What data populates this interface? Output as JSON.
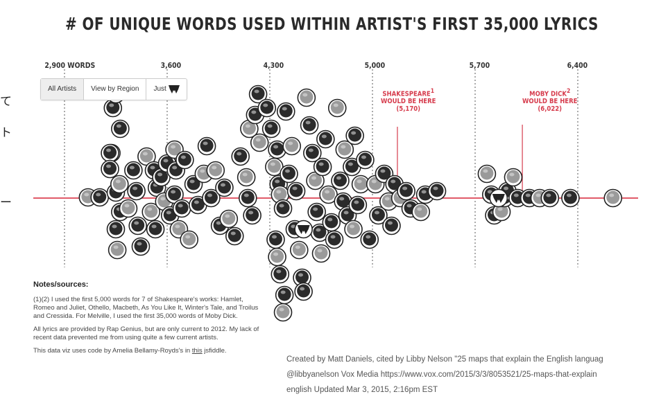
{
  "title": "# OF UNIQUE WORDS USED WITHIN ARTIST'S FIRST 35,000 LYRICS",
  "axis_ticks": [
    "2,900 WORDS",
    "3,600",
    "4,300",
    "5,000",
    "5,700",
    "6,400"
  ],
  "filters": {
    "all": "All Artists",
    "region": "View by Region",
    "just": "Just"
  },
  "annotations": {
    "shakespeare": {
      "l1": "SHAKESPEARE",
      "sup": "1",
      "l2": "WOULD BE HERE",
      "l3": "(5,170)"
    },
    "mobydick": {
      "l1": "MOBY DICK",
      "sup": "2",
      "l2": "WOULD BE HERE",
      "l3": "(6,022)"
    }
  },
  "notes": {
    "title": "Notes/sources:",
    "p1": "(1)(2) I used the first 5,000 words for 7 of Shakespeare's works: Hamlet, Romeo and Juliet, Othello, Macbeth, As You Like It, Winter's Tale, and Troilus and Cressida. For Melville, I used the first 35,000 words of Moby Dick.",
    "p2": "All lyrics are provided by Rap Genius, but are only current to 2012. My lack of recent data prevented me from using quite a few current artists.",
    "p3_pre": "This data viz uses code by Amelia Bellamy-Royds's in ",
    "p3_link": "this",
    "p3_post": " jsfiddle."
  },
  "credit": {
    "l1": "Created by Matt Daniels, cited by Libby Nelson \"25 maps that explain the English languag",
    "l2": "@libbyanelson Vox Media https://www.vox.com/2015/3/3/8053521/25-maps-that-explain",
    "l3": "english Updated Mar 3, 2015, 2:16pm EST"
  },
  "left_glyphs": [
    "て",
    "ト",
    "ー"
  ],
  "colors": {
    "accent": "#d63b4c",
    "axis": "#e05a68",
    "face_dark": "#2b2b2b",
    "face_light": "#9a9a9a"
  },
  "chart_data": {
    "type": "scatter",
    "title": "# OF UNIQUE WORDS USED WITHIN ARTIST'S FIRST 35,000 LYRICS",
    "x_axis": {
      "ticks": [
        2900,
        3600,
        4300,
        5000,
        5700,
        6400
      ],
      "range": [
        2900,
        6750
      ]
    },
    "reference_lines": [
      {
        "label": "SHAKESPEARE",
        "value": 5170
      },
      {
        "label": "MOBY DICK",
        "value": 6022
      }
    ],
    "markers": [
      [
        3060,
        -1
      ],
      [
        3140,
        -1
      ],
      [
        3250,
        -8
      ],
      [
        3220,
        -65
      ],
      [
        3280,
        -100
      ],
      [
        3230,
        -130
      ],
      [
        3250,
        -150
      ],
      [
        3210,
        -65
      ],
      [
        3210,
        -42
      ],
      [
        3275,
        -20
      ],
      [
        3280,
        20
      ],
      [
        3250,
        45
      ],
      [
        3260,
        75
      ],
      [
        3370,
        -40
      ],
      [
        3390,
        -10
      ],
      [
        3335,
        15
      ],
      [
        3400,
        40
      ],
      [
        3420,
        70
      ],
      [
        3460,
        -60
      ],
      [
        3510,
        -40
      ],
      [
        3530,
        -15
      ],
      [
        3490,
        20
      ],
      [
        3520,
        45
      ],
      [
        3560,
        -30
      ],
      [
        3580,
        5
      ],
      [
        3600,
        -50
      ],
      [
        3620,
        25
      ],
      [
        3650,
        -70
      ],
      [
        3660,
        -40
      ],
      [
        3650,
        -5
      ],
      [
        3680,
        45
      ],
      [
        3700,
        15
      ],
      [
        3720,
        -55
      ],
      [
        3750,
        60
      ],
      [
        3780,
        -20
      ],
      [
        3810,
        10
      ],
      [
        3850,
        -35
      ],
      [
        3870,
        -75
      ],
      [
        3900,
        0
      ],
      [
        3930,
        -40
      ],
      [
        3960,
        40
      ],
      [
        3990,
        -15
      ],
      [
        4020,
        30
      ],
      [
        4060,
        55
      ],
      [
        4100,
        -60
      ],
      [
        4140,
        -30
      ],
      [
        4150,
        0
      ],
      [
        4180,
        25
      ],
      [
        4160,
        -100
      ],
      [
        4200,
        -120
      ],
      [
        4220,
        -150
      ],
      [
        4230,
        -80
      ],
      [
        4280,
        -130
      ],
      [
        4310,
        -100
      ],
      [
        4330,
        -45
      ],
      [
        4350,
        -70
      ],
      [
        4360,
        -20
      ],
      [
        4370,
        -5
      ],
      [
        4390,
        15
      ],
      [
        4340,
        60
      ],
      [
        4350,
        85
      ],
      [
        4370,
        110
      ],
      [
        4400,
        140
      ],
      [
        4390,
        165
      ],
      [
        4410,
        -125
      ],
      [
        4430,
        -35
      ],
      [
        4450,
        -75
      ],
      [
        4470,
        45
      ],
      [
        4480,
        -10
      ],
      [
        4500,
        75
      ],
      [
        4520,
        115
      ],
      [
        4530,
        135
      ],
      [
        4550,
        -145
      ],
      [
        4570,
        -105
      ],
      [
        4590,
        -65
      ],
      [
        4610,
        -25
      ],
      [
        4620,
        20
      ],
      [
        4640,
        50
      ],
      [
        4650,
        80
      ],
      [
        4660,
        -45
      ],
      [
        4680,
        -85
      ],
      [
        4700,
        -5
      ],
      [
        4720,
        35
      ],
      [
        4740,
        60
      ],
      [
        4760,
        -130
      ],
      [
        4780,
        -25
      ],
      [
        4800,
        5
      ],
      [
        4810,
        -70
      ],
      [
        4830,
        25
      ],
      [
        4860,
        -45
      ],
      [
        4870,
        45
      ],
      [
        4880,
        -90
      ],
      [
        4900,
        10
      ],
      [
        4920,
        -20
      ],
      [
        4950,
        -55
      ],
      [
        4980,
        60
      ],
      [
        5020,
        -20
      ],
      [
        5040,
        25
      ],
      [
        5080,
        -35
      ],
      [
        5110,
        5
      ],
      [
        5130,
        40
      ],
      [
        5150,
        -20
      ],
      [
        5190,
        0
      ],
      [
        5230,
        -10
      ],
      [
        5260,
        15
      ],
      [
        5330,
        20
      ],
      [
        5360,
        -5
      ],
      [
        5440,
        -10
      ],
      [
        5780,
        -35
      ],
      [
        5810,
        -5
      ],
      [
        5830,
        25
      ],
      [
        5880,
        20
      ],
      [
        5900,
        0
      ],
      [
        5920,
        -10
      ],
      [
        5960,
        -30
      ],
      [
        5990,
        0
      ],
      [
        6070,
        0
      ],
      [
        6140,
        0
      ],
      [
        6210,
        0
      ],
      [
        6350,
        0
      ],
      [
        6640,
        0
      ]
    ],
    "wu_markers": [
      [
        4530,
        45
      ],
      [
        5860,
        0
      ]
    ]
  }
}
